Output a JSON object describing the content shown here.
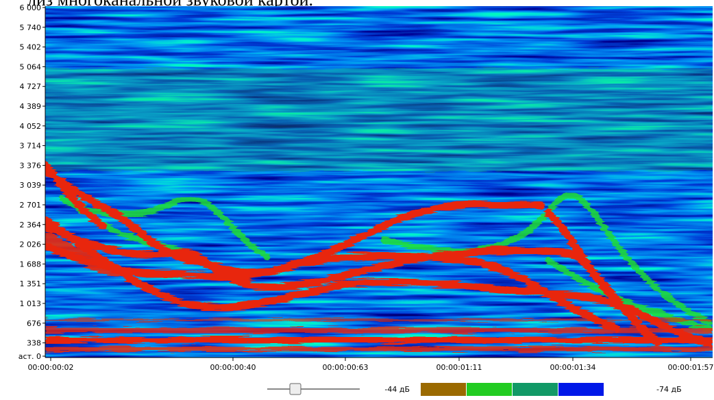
{
  "header_text": "лиз многоканальной звуковой картой.",
  "y_axis": {
    "labels": [
      "6 000",
      "5 740",
      "5 402",
      "5 064",
      "4 727",
      "4 389",
      "4 052",
      "3 714",
      "3 376",
      "3 039",
      "2 701",
      "2 364",
      "2 026",
      "1 688",
      "1 351",
      "1 013",
      "676",
      "338",
      "аст. 0"
    ]
  },
  "x_axis": {
    "labels": [
      "00:00:00:02",
      "00:00:00:40",
      "00:00:00:63",
      "00:00:01:11",
      "00:00:01:34",
      "00:00:01:57"
    ]
  },
  "legend": {
    "max_label": "-44 дБ",
    "min_label": "-74 дБ",
    "colors": [
      "#9b6a00",
      "#22cc22",
      "#119966",
      "#0018e8"
    ]
  }
}
